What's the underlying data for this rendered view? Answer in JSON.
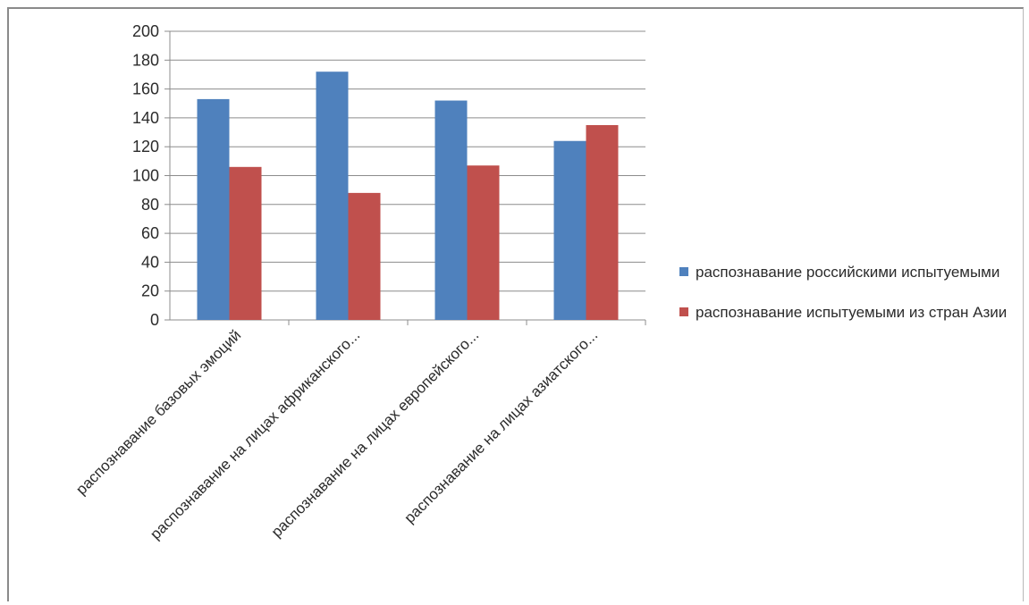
{
  "chart_data": {
    "type": "bar",
    "categories": [
      "распознавание базовых эмоций",
      "распознавание на лицах африканского...",
      "распознавание на лицах европейского...",
      "распознавание на лицах азиатского..."
    ],
    "series": [
      {
        "name": "распознавание российскими испытуемыми",
        "values": [
          153,
          172,
          152,
          124
        ],
        "color": "#4F81BD"
      },
      {
        "name": "распознавание испытуемыми из стран Азии",
        "values": [
          106,
          88,
          107,
          135
        ],
        "color": "#C0504D"
      }
    ],
    "y_ticks": [
      0,
      20,
      40,
      60,
      80,
      100,
      120,
      140,
      160,
      180,
      200
    ],
    "ylim": [
      0,
      200
    ],
    "grid": true,
    "legend_position": "right"
  }
}
